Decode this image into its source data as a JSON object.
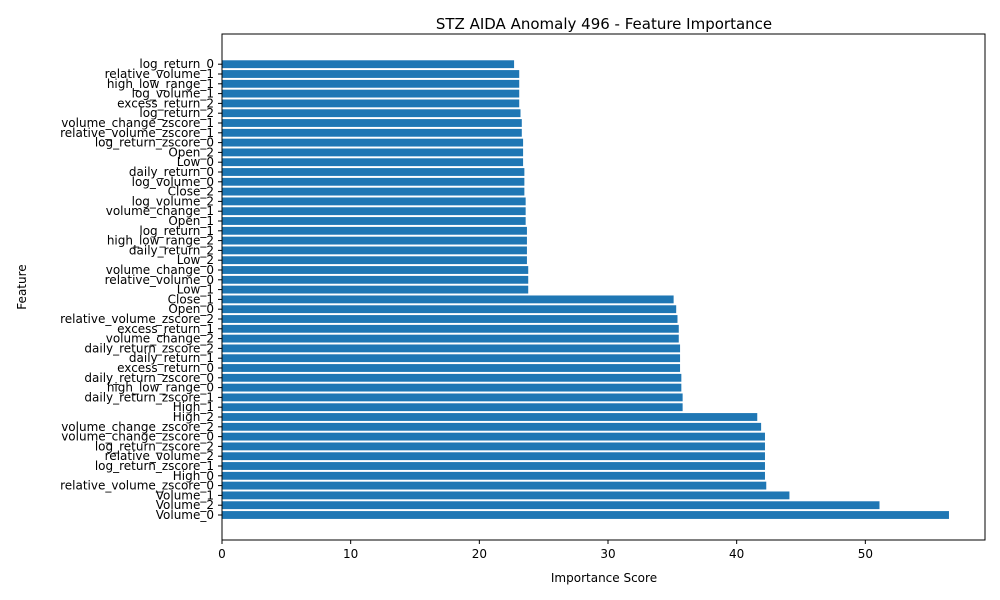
{
  "chart_data": {
    "type": "bar",
    "orientation": "horizontal",
    "title": "STZ AIDA Anomaly 496 - Feature Importance",
    "xlabel": "Importance Score",
    "ylabel": "Feature",
    "xlim": [
      0,
      59.3
    ],
    "xticks": [
      0,
      10,
      20,
      30,
      40,
      50
    ],
    "grid": false,
    "bar_color": "#1f77b4",
    "categories": [
      "Volume_0",
      "Volume_2",
      "Volume_1",
      "relative_volume_zscore_0",
      "High_0",
      "log_return_zscore_1",
      "relative_volume_2",
      "log_return_zscore_2",
      "volume_change_zscore_0",
      "volume_change_zscore_2",
      "High_2",
      "High_1",
      "daily_return_zscore_1",
      "high_low_range_0",
      "daily_return_zscore_0",
      "excess_return_0",
      "daily_return_1",
      "daily_return_zscore_2",
      "volume_change_2",
      "excess_return_1",
      "relative_volume_zscore_2",
      "Open_0",
      "Close_1",
      "Low_1",
      "relative_volume_0",
      "volume_change_0",
      "Low_2",
      "daily_return_2",
      "high_low_range_2",
      "log_return_1",
      "Open_1",
      "volume_change_1",
      "log_volume_2",
      "Close_2",
      "log_volume_0",
      "daily_return_0",
      "Low_0",
      "Open_2",
      "log_return_zscore_0",
      "relative_volume_zscore_1",
      "volume_change_zscore_1",
      "log_return_2",
      "excess_return_2",
      "log_volume_1",
      "high_low_range_1",
      "relative_volume_1",
      "log_return_0"
    ],
    "values": [
      56.5,
      51.1,
      44.1,
      42.3,
      42.2,
      42.2,
      42.2,
      42.2,
      42.2,
      41.9,
      41.6,
      35.8,
      35.8,
      35.7,
      35.7,
      35.6,
      35.6,
      35.6,
      35.5,
      35.5,
      35.4,
      35.3,
      35.1,
      23.8,
      23.8,
      23.8,
      23.7,
      23.7,
      23.7,
      23.7,
      23.6,
      23.6,
      23.6,
      23.5,
      23.5,
      23.5,
      23.4,
      23.4,
      23.4,
      23.3,
      23.3,
      23.2,
      23.1,
      23.1,
      23.1,
      23.1,
      22.7
    ]
  }
}
